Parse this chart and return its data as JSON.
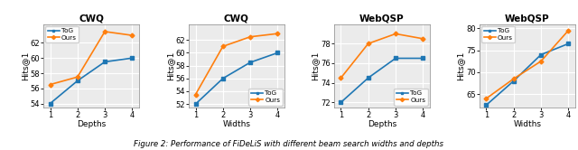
{
  "plots": [
    {
      "title": "CWQ",
      "xlabel": "Depths",
      "ylabel": "Hits@1",
      "x": [
        1,
        2,
        3,
        4
      ],
      "tog": [
        54.0,
        57.0,
        59.5,
        60.0
      ],
      "ours": [
        56.5,
        57.5,
        63.5,
        63.0
      ],
      "ylim": [
        53.5,
        64.5
      ],
      "yticks": [
        54,
        56,
        58,
        60,
        62
      ],
      "legend_loc": "upper left"
    },
    {
      "title": "CWQ",
      "xlabel": "Widths",
      "ylabel": "Hits@1",
      "x": [
        1,
        2,
        3,
        4
      ],
      "tog": [
        52.0,
        56.0,
        58.5,
        60.0
      ],
      "ours": [
        53.5,
        61.0,
        62.5,
        63.0
      ],
      "ylim": [
        51.5,
        64.5
      ],
      "yticks": [
        52,
        54,
        56,
        58,
        60,
        62
      ],
      "legend_loc": "lower right"
    },
    {
      "title": "WebQSP",
      "xlabel": "Depths",
      "ylabel": "Hits@1",
      "x": [
        1,
        2,
        3,
        4
      ],
      "tog": [
        72.0,
        74.5,
        76.5,
        76.5
      ],
      "ours": [
        74.5,
        78.0,
        79.0,
        78.5
      ],
      "ylim": [
        71.5,
        80.0
      ],
      "yticks": [
        72,
        74,
        76,
        78
      ],
      "legend_loc": "lower right"
    },
    {
      "title": "WebQSP",
      "xlabel": "Widths",
      "ylabel": "Hits@1",
      "x": [
        1,
        2,
        3,
        4
      ],
      "tog": [
        62.5,
        68.0,
        74.0,
        76.5
      ],
      "ours": [
        64.0,
        68.5,
        72.5,
        79.5
      ],
      "ylim": [
        62.0,
        81.0
      ],
      "yticks": [
        65,
        70,
        75,
        80
      ],
      "legend_loc": "upper left"
    }
  ],
  "tog_color": "#1f77b4",
  "ours_color": "#ff7f0e",
  "tog_label": "ToG",
  "ours_label": "Ours",
  "caption": "Figure 2: Performance of FiDeLiS with different beam search widths and depths",
  "bg_color": "#ebebeb"
}
